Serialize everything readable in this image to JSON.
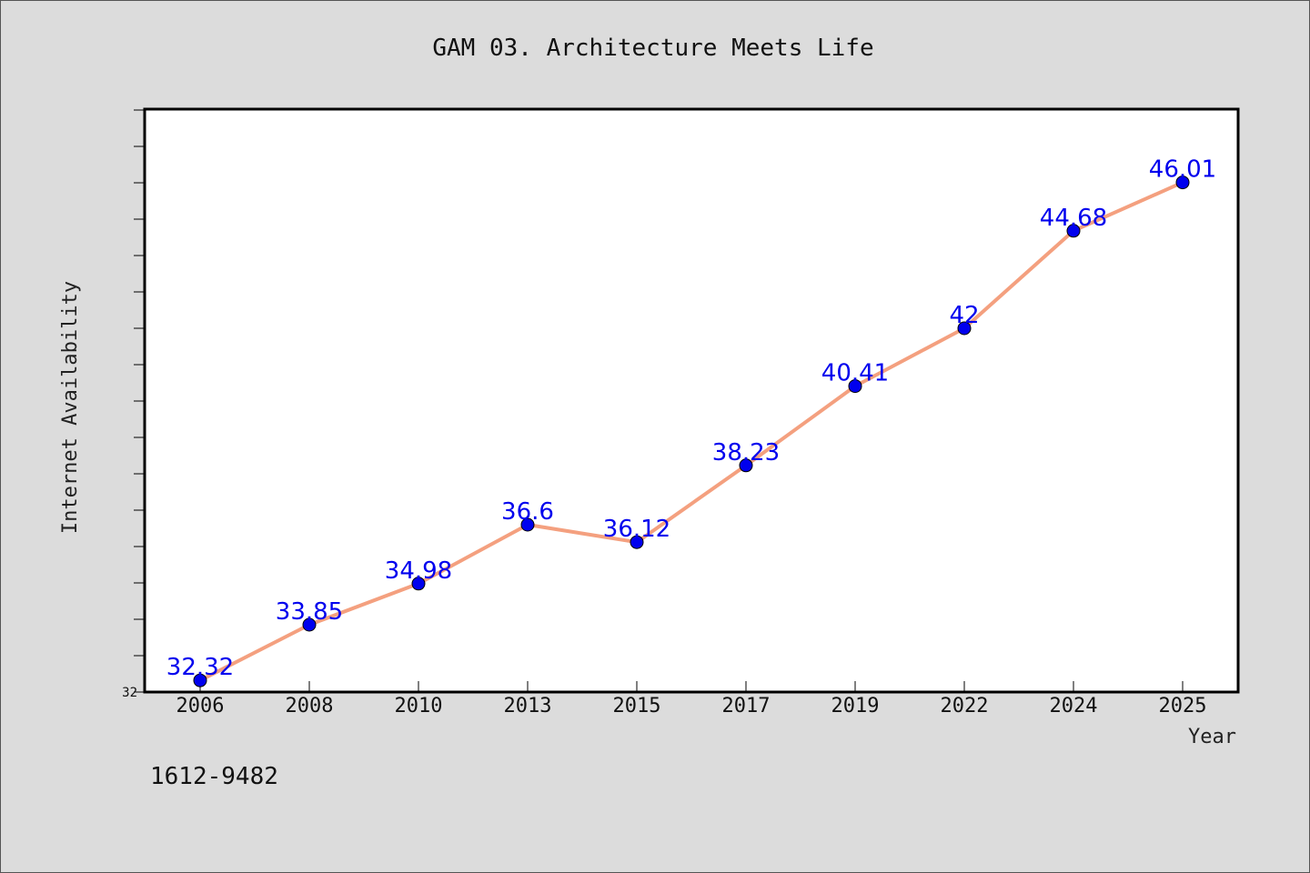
{
  "chart_data": {
    "type": "line",
    "title": "GAM 03. Architecture Meets Life",
    "xlabel": "Year",
    "ylabel": "Internet Availability",
    "categories": [
      "2006",
      "2008",
      "2010",
      "2013",
      "2015",
      "2017",
      "2019",
      "2022",
      "2024",
      "2025"
    ],
    "series": [
      {
        "values": [
          32.32,
          33.85,
          34.98,
          36.6,
          36.12,
          38.23,
          40.41,
          42,
          44.68,
          46.01
        ],
        "labels": [
          "32.32",
          "33.85",
          "34.98",
          "36.6",
          "36.12",
          "38.23",
          "40.41",
          "42",
          "44.68",
          "46.01"
        ]
      }
    ],
    "ylim": [
      32,
      48
    ],
    "y_tick_step": 1,
    "y_tick_labels": [
      "32"
    ],
    "grid": false,
    "colors": {
      "line": "#f4a07f",
      "marker": "#0000ee",
      "data_label": "#0000ee"
    }
  },
  "footnote": "1612-9482"
}
